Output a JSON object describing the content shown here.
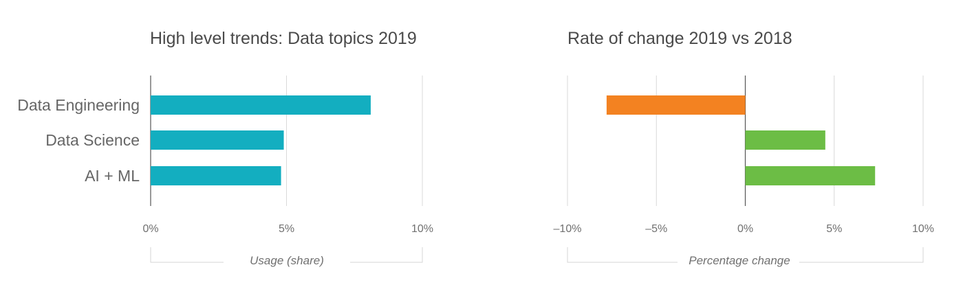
{
  "chart_data": [
    {
      "type": "bar",
      "orientation": "horizontal",
      "title": "High level trends: Data topics 2019",
      "categories": [
        "Data Engineering",
        "Data Science",
        "AI + ML"
      ],
      "values": [
        8.1,
        4.9,
        4.8
      ],
      "unit": "%",
      "xlabel": "Usage (share)",
      "xlim": [
        0,
        10
      ],
      "xticks": [
        "0%",
        "5%",
        "10%"
      ],
      "grid": true,
      "colors": {
        "bar": "#13AEC0"
      }
    },
    {
      "type": "bar",
      "orientation": "horizontal",
      "title": "Rate of change 2019 vs 2018",
      "categories": [
        "Data Engineering",
        "Data Science",
        "AI + ML"
      ],
      "values": [
        -7.8,
        4.5,
        7.3
      ],
      "unit": "%",
      "xlabel": "Percentage change",
      "xlim": [
        -10,
        10
      ],
      "xticks": [
        "–10%",
        "–5%",
        "0%",
        "5%",
        "10%"
      ],
      "grid": true,
      "colors": {
        "negative": "#F38221",
        "positive": "#6CBD45"
      }
    }
  ]
}
